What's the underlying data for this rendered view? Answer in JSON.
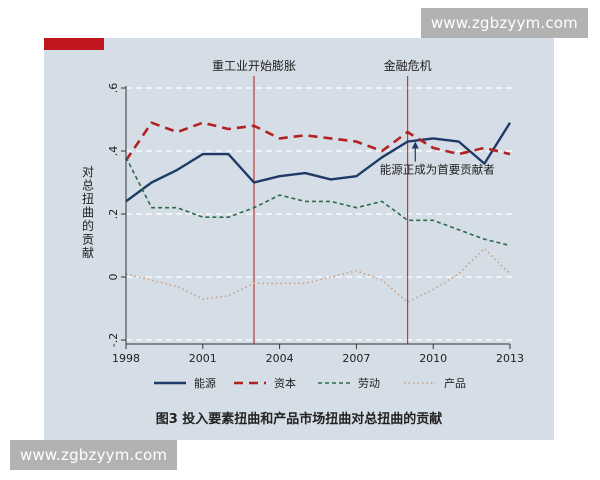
{
  "watermarks": {
    "top": "www.zgbzyym.com",
    "bottom": "www.zgbzyym.com"
  },
  "colors": {
    "panel_bg": "#d5dde6",
    "accent_red": "#c0161e",
    "energy": "#1f3a66",
    "capital": "#b22222",
    "labor": "#2e6b4a",
    "product": "#c9a27a",
    "event_line": "#c03a3a",
    "axis": "#333333"
  },
  "chart_data": {
    "type": "line",
    "title": "",
    "caption": "图3  投入要素扭曲和产品市场扭曲对总扭曲的贡献",
    "xlabel": "",
    "ylabel": "对总扭曲的贡献",
    "xlim": [
      1998,
      2013
    ],
    "ylim": [
      -0.2,
      0.6
    ],
    "x_ticks": [
      "1998",
      "2001",
      "2004",
      "2007",
      "2010",
      "2013"
    ],
    "y_ticks": [
      {
        "value": -0.2,
        "label": "-.2"
      },
      {
        "value": 0,
        "label": "0"
      },
      {
        "value": 0.2,
        "label": ".2"
      },
      {
        "value": 0.4,
        "label": ".4"
      },
      {
        "value": 0.6,
        "label": ".6"
      }
    ],
    "grid": "horizontal dashed",
    "legend_position": "bottom",
    "x": [
      1998,
      1999,
      2000,
      2001,
      2002,
      2003,
      2004,
      2005,
      2006,
      2007,
      2008,
      2009,
      2010,
      2011,
      2012,
      2013
    ],
    "series": [
      {
        "name": "能源",
        "style": "solid",
        "color": "#1f3a66",
        "values": [
          0.24,
          0.3,
          0.34,
          0.39,
          0.39,
          0.3,
          0.32,
          0.33,
          0.31,
          0.32,
          0.38,
          0.43,
          0.44,
          0.43,
          0.36,
          0.49
        ]
      },
      {
        "name": "资本",
        "style": "longdash",
        "color": "#b22222",
        "values": [
          0.37,
          0.49,
          0.46,
          0.49,
          0.47,
          0.48,
          0.44,
          0.45,
          0.44,
          0.43,
          0.4,
          0.46,
          0.41,
          0.39,
          0.41,
          0.39
        ]
      },
      {
        "name": "劳动",
        "style": "shortdash",
        "color": "#2e6b4a",
        "values": [
          0.38,
          0.22,
          0.22,
          0.19,
          0.19,
          0.22,
          0.26,
          0.24,
          0.24,
          0.22,
          0.24,
          0.18,
          0.18,
          0.15,
          0.12,
          0.1
        ]
      },
      {
        "name": "产品",
        "style": "dotted",
        "color": "#c9a27a",
        "values": [
          0.01,
          -0.01,
          -0.03,
          -0.07,
          -0.06,
          -0.02,
          -0.02,
          -0.02,
          0.0,
          0.02,
          -0.01,
          -0.08,
          -0.04,
          0.01,
          0.09,
          0.01
        ]
      }
    ],
    "vlines": [
      {
        "x": 2003,
        "label": "重工业开始膨胀"
      },
      {
        "x": 2009,
        "label": "金融危机"
      }
    ],
    "annotation": {
      "text": "能源正成为首要贡献者",
      "x": 2009.3,
      "y": 0.43
    }
  }
}
